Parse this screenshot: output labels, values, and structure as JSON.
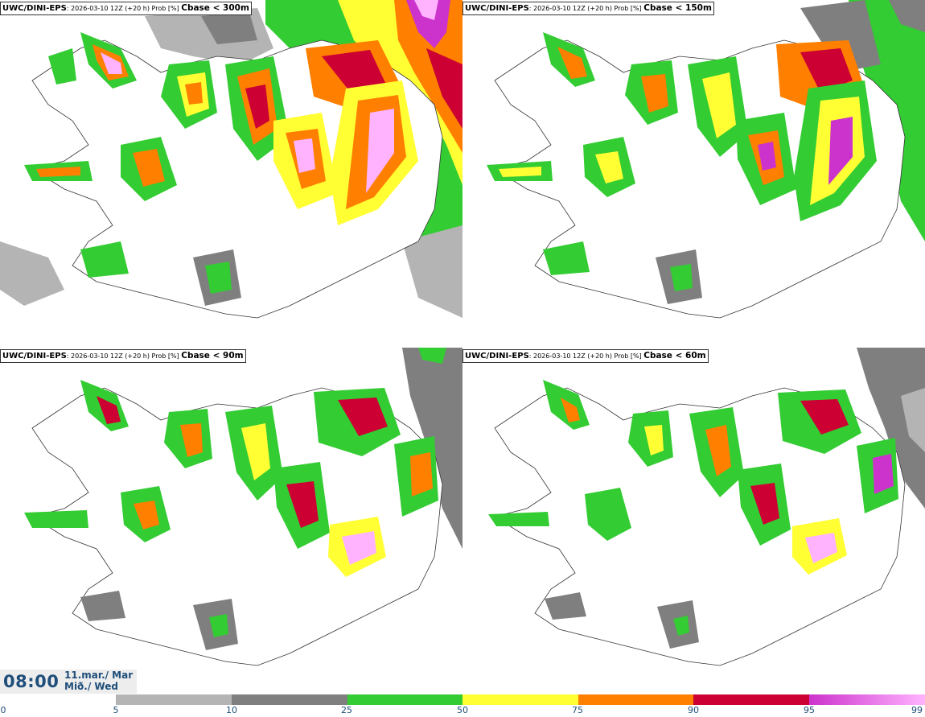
{
  "panels": [
    {
      "model": "UWC/DINI-EPS",
      "meta": ": 2026-03-10 12Z (+20 h) Prob [%] ",
      "variable": "Cbase < 300m"
    },
    {
      "model": "UWC/DINI-EPS",
      "meta": ": 2026-03-10 12Z (+20 h) Prob [%] ",
      "variable": "Cbase < 150m"
    },
    {
      "model": "UWC/DINI-EPS",
      "meta": ": 2026-03-10 12Z (+20 h) Prob [%] ",
      "variable": "Cbase < 90m"
    },
    {
      "model": "UWC/DINI-EPS",
      "meta": ": 2026-03-10 12Z (+20 h) Prob [%] ",
      "variable": "Cbase < 60m"
    }
  ],
  "valid_time": {
    "time": "08:00",
    "date_line1": "11.mar./ Mar",
    "date_line2": "Mið./ Wed"
  },
  "colorbar": {
    "ticks": [
      "0",
      "5",
      "10",
      "25",
      "50",
      "75",
      "90",
      "95",
      "99"
    ],
    "colors": [
      "#b4b4b4",
      "#7f7f7f",
      "#33cc33",
      "#ffff33",
      "#ff7f00",
      "#cc0033",
      "#cc33cc",
      "#ffb3ff"
    ]
  }
}
